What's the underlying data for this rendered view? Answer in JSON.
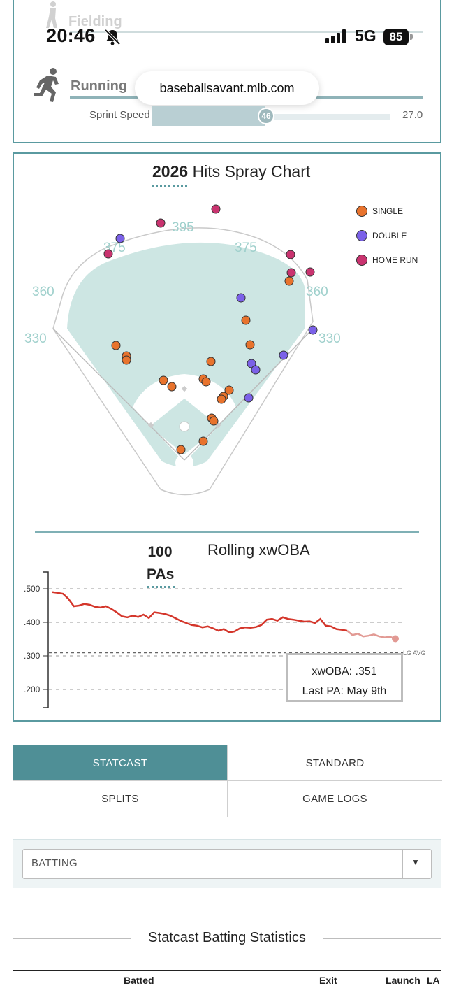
{
  "status_bar": {
    "time": "20:46",
    "network": "5G",
    "battery": "85",
    "ghost_label": "Fielding"
  },
  "browser": {
    "url": "baseballsavant.mlb.com"
  },
  "running": {
    "label": "Running",
    "sprint_speed_label": "Sprint Speed",
    "sprint_percentile": "46",
    "sprint_max": "27.0"
  },
  "spray_chart": {
    "title_year": "2026",
    "title_text": "Hits Spray Chart",
    "legend": [
      {
        "label": "SINGLE",
        "color": "#e8732d"
      },
      {
        "label": "DOUBLE",
        "color": "#7b61e8"
      },
      {
        "label": "HOME RUN",
        "color": "#c9336f"
      }
    ],
    "distance_labels": {
      "lf_line": "330",
      "lf_gap": "360",
      "lcf": "375",
      "cf": "395",
      "rcf": "375",
      "rf_gap": "360",
      "rf_line": "330"
    },
    "colors": {
      "grass": "#cde6e3",
      "infield": "#cde6e3",
      "label": "#9fd0cc",
      "border": "#5a9aa0"
    }
  },
  "rolling": {
    "pa_count": "100",
    "pa_unit": "PAs",
    "title": "Rolling xwOBA",
    "lg_avg_label": "LG AVG",
    "tooltip_line1": "xwOBA: .351",
    "tooltip_line2": "Last PA: May 9th"
  },
  "tabs": [
    {
      "label": "STATCAST",
      "active": true
    },
    {
      "label": "STANDARD",
      "active": false
    },
    {
      "label": "SPLITS",
      "active": false
    },
    {
      "label": "GAME LOGS",
      "active": false
    }
  ],
  "batting_select": {
    "value": "BATTING",
    "arrow": "▼"
  },
  "stats_table": {
    "title": "Statcast Batting Statistics",
    "columns": [
      "Batted",
      "Exit",
      "Launch",
      "LA"
    ]
  },
  "chart_data": {
    "type": "line",
    "title": "Rolling xwOBA",
    "ylabel": "",
    "xlabel": "",
    "ylim": [
      0.18,
      0.52
    ],
    "yticks": [
      ".500",
      ".400",
      ".300",
      ".200"
    ],
    "ytick_values": [
      0.5,
      0.4,
      0.3,
      0.2
    ],
    "league_average": 0.31,
    "line_color": "#d4362b",
    "series": [
      {
        "values": [
          0.49,
          0.488,
          0.485,
          0.47,
          0.448,
          0.45,
          0.455,
          0.452,
          0.446,
          0.444,
          0.448,
          0.44,
          0.43,
          0.418,
          0.415,
          0.42,
          0.416,
          0.423,
          0.413,
          0.43,
          0.428,
          0.425,
          0.42,
          0.412,
          0.404,
          0.398,
          0.392,
          0.39,
          0.385,
          0.388,
          0.382,
          0.375,
          0.38,
          0.37,
          0.373,
          0.382,
          0.385,
          0.384,
          0.386,
          0.392,
          0.408,
          0.41,
          0.405,
          0.415,
          0.41,
          0.408,
          0.405,
          0.402,
          0.403,
          0.398,
          0.41,
          0.39,
          0.388,
          0.38,
          0.378,
          0.375,
          0.362,
          0.366,
          0.358,
          0.36,
          0.364,
          0.358,
          0.355,
          0.357,
          0.351
        ]
      }
    ]
  }
}
